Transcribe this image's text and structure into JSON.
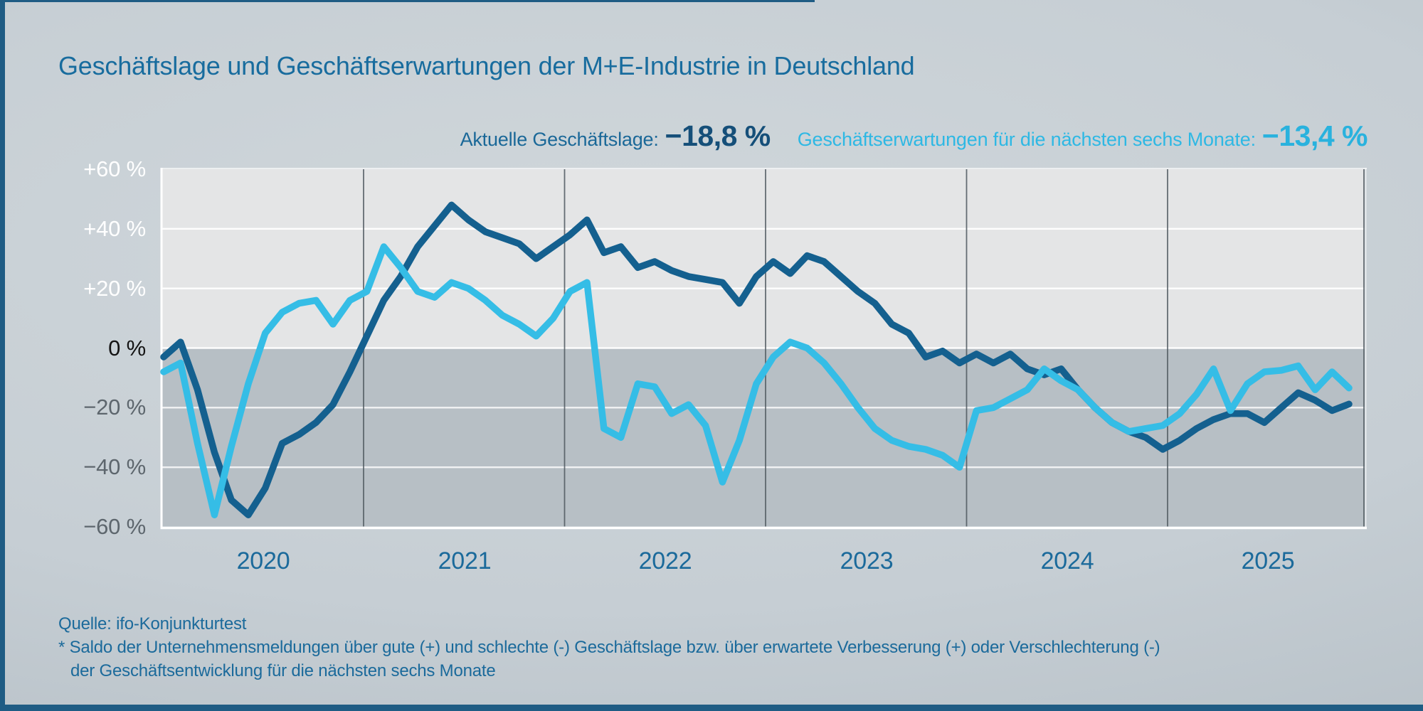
{
  "title": "Geschäftslage und Geschäftserwartungen der M+E-Industrie in Deutschland",
  "colors": {
    "accent_frame": "#1f5c84",
    "title_text": "#186c9e",
    "axis_year_text": "#1b6a9b",
    "footer_text": "#1b6a9b"
  },
  "legend": {
    "lage_label": "Aktuelle Geschäftslage:",
    "lage_value": "−18,8 %",
    "erwartungen_label": "Geschäftserwartungen für die nächsten sechs Monate:",
    "erwartungen_value": "−13,4 %"
  },
  "footer": {
    "source": "Quelle: ifo-Konjunkturtest",
    "note_line1": "* Saldo der Unternehmensmeldungen über gute (+) und schlechte (-) Geschäftslage bzw. über erwartete Verbesserung (+) oder Verschlechterung (-)",
    "note_line2": "der Geschäftsentwicklung für die nächsten sechs Monate"
  },
  "chart_data": {
    "type": "line",
    "title": "Geschäftslage und Geschäftserwartungen der M+E-Industrie in Deutschland",
    "x_labels": [
      "2020",
      "2021",
      "2022",
      "2023",
      "2024",
      "2025"
    ],
    "x_range": "2020-01 bis 2025-11, monatlich",
    "ylim": [
      -60,
      60
    ],
    "grid": "horizontal white lines every 20, dark vertical separators at year boundaries",
    "y_ticks": [
      {
        "label": "+60 %",
        "value": 60
      },
      {
        "label": "+40 %",
        "value": 40
      },
      {
        "label": "+20 %",
        "value": 20
      },
      {
        "label": "0 %",
        "value": 0
      },
      {
        "label": "−20 %",
        "value": -20
      },
      {
        "label": "−40 %",
        "value": -40
      },
      {
        "label": "−60 %",
        "value": -60
      }
    ],
    "plot_colors": {
      "above_zero_bg": "#e4e5e6",
      "below_zero_bg": "#b7bfc5",
      "gridline": "#ffffff",
      "year_separator": "#4d575e"
    },
    "series": [
      {
        "name": "Aktuelle Geschäftslage",
        "color": "#14608f",
        "current_value": "-18,8 %",
        "values": [
          -3,
          2,
          -14,
          -35,
          -51,
          -56,
          -47,
          -32,
          -29,
          -25,
          -19,
          -8,
          4,
          16,
          24,
          34,
          41,
          48,
          43,
          39,
          37,
          35,
          30,
          34,
          38,
          43,
          32,
          34,
          27,
          29,
          26,
          24,
          23,
          22,
          15,
          24,
          29,
          25,
          31,
          29,
          24,
          19,
          15,
          8,
          5,
          -3,
          -1,
          -5,
          -2,
          -5,
          -2,
          -7,
          -9,
          -7,
          -14,
          -20,
          -25,
          -28,
          -30,
          -34,
          -31,
          -27,
          -24,
          -22,
          -22,
          -25,
          -20,
          -15,
          -17.5,
          -21,
          -18.8
        ]
      },
      {
        "name": "Geschäftserwartungen für die nächsten sechs Monate",
        "color": "#35bde6",
        "current_value": "-13,4 %",
        "values": [
          -8,
          -5,
          -32,
          -56,
          -33,
          -12,
          5,
          12,
          15,
          16,
          8,
          16,
          19,
          34,
          27,
          19,
          17,
          22,
          20,
          16,
          11,
          8,
          4,
          10,
          19,
          22,
          -27,
          -30,
          -12,
          -13,
          -22,
          -19,
          -26,
          -45,
          -31,
          -12,
          -3,
          2,
          0,
          -5,
          -12,
          -20,
          -27,
          -31,
          -33,
          -34,
          -36,
          -40,
          -21,
          -20,
          -17,
          -14,
          -7,
          -11,
          -14,
          -20,
          -25,
          -28,
          -27,
          -26,
          -22,
          -15.5,
          -7,
          -21,
          -12,
          -8,
          -7.5,
          -6,
          -14,
          -8,
          -13.4
        ]
      }
    ]
  }
}
